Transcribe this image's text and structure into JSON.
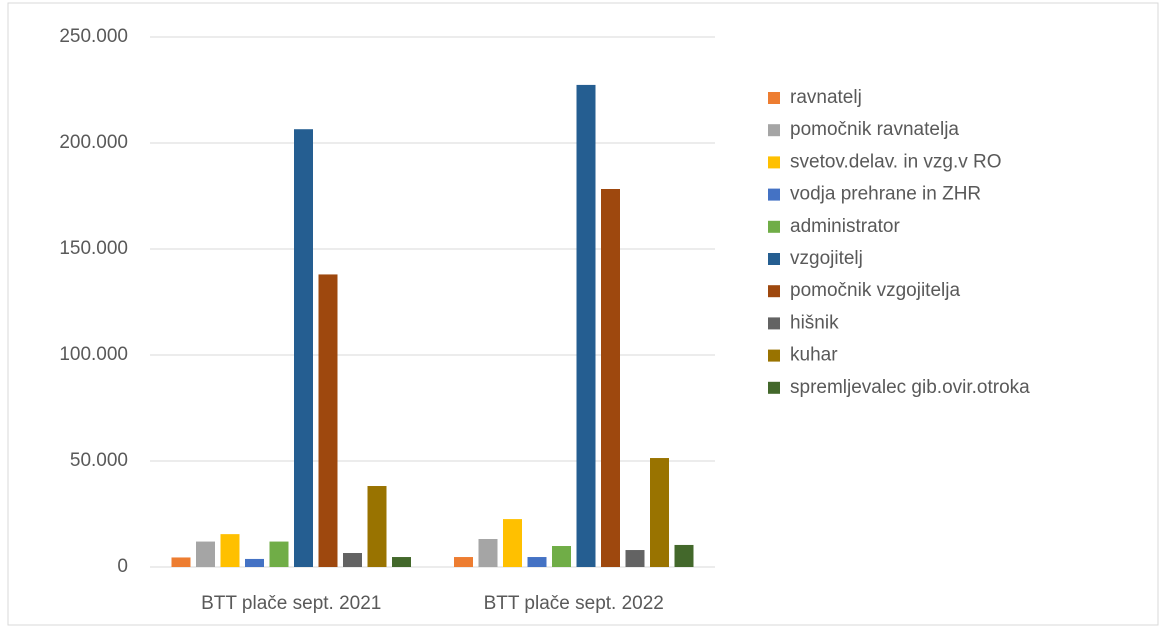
{
  "chart_data": {
    "type": "bar",
    "categories": [
      "BTT plače sept. 2021",
      "BTT plače sept. 2022"
    ],
    "series": [
      {
        "name": "ravnatelj",
        "color": "#ed7d31",
        "values": [
          4500,
          4700
        ]
      },
      {
        "name": "pomočnik ravnatelja",
        "color": "#a5a5a5",
        "values": [
          12000,
          13200
        ]
      },
      {
        "name": "svetov.delav. in vzg.v  RO",
        "color": "#ffc000",
        "values": [
          15500,
          22600
        ]
      },
      {
        "name": "vodja prehrane in ZHR",
        "color": "#4472c4",
        "values": [
          3800,
          4700
        ]
      },
      {
        "name": "administrator",
        "color": "#70ad47",
        "values": [
          12000,
          9900
        ]
      },
      {
        "name": "vzgojitelj",
        "color": "#255e91",
        "values": [
          206500,
          227400
        ]
      },
      {
        "name": "pomočnik vzgojitelja",
        "color": "#9e480e",
        "values": [
          138000,
          178300
        ]
      },
      {
        "name": "hišnik",
        "color": "#636363",
        "values": [
          6600,
          8000
        ]
      },
      {
        "name": "kuhar",
        "color": "#997300",
        "values": [
          38200,
          51400
        ]
      },
      {
        "name": "spremljevalec  gib.ovir.otroka",
        "color": "#43682b",
        "values": [
          4700,
          10400
        ]
      }
    ],
    "ylim": [
      0,
      250000
    ],
    "yticks": [
      0,
      {
        "value": 50000,
        "label": "50.000"
      },
      {
        "value": 100000,
        "label": "100.000"
      },
      {
        "value": 150000,
        "label": "150.000"
      },
      {
        "value": 200000,
        "label": "200.000"
      },
      {
        "value": 250000,
        "label": "250.000"
      }
    ],
    "grid": true,
    "legend": "right"
  }
}
